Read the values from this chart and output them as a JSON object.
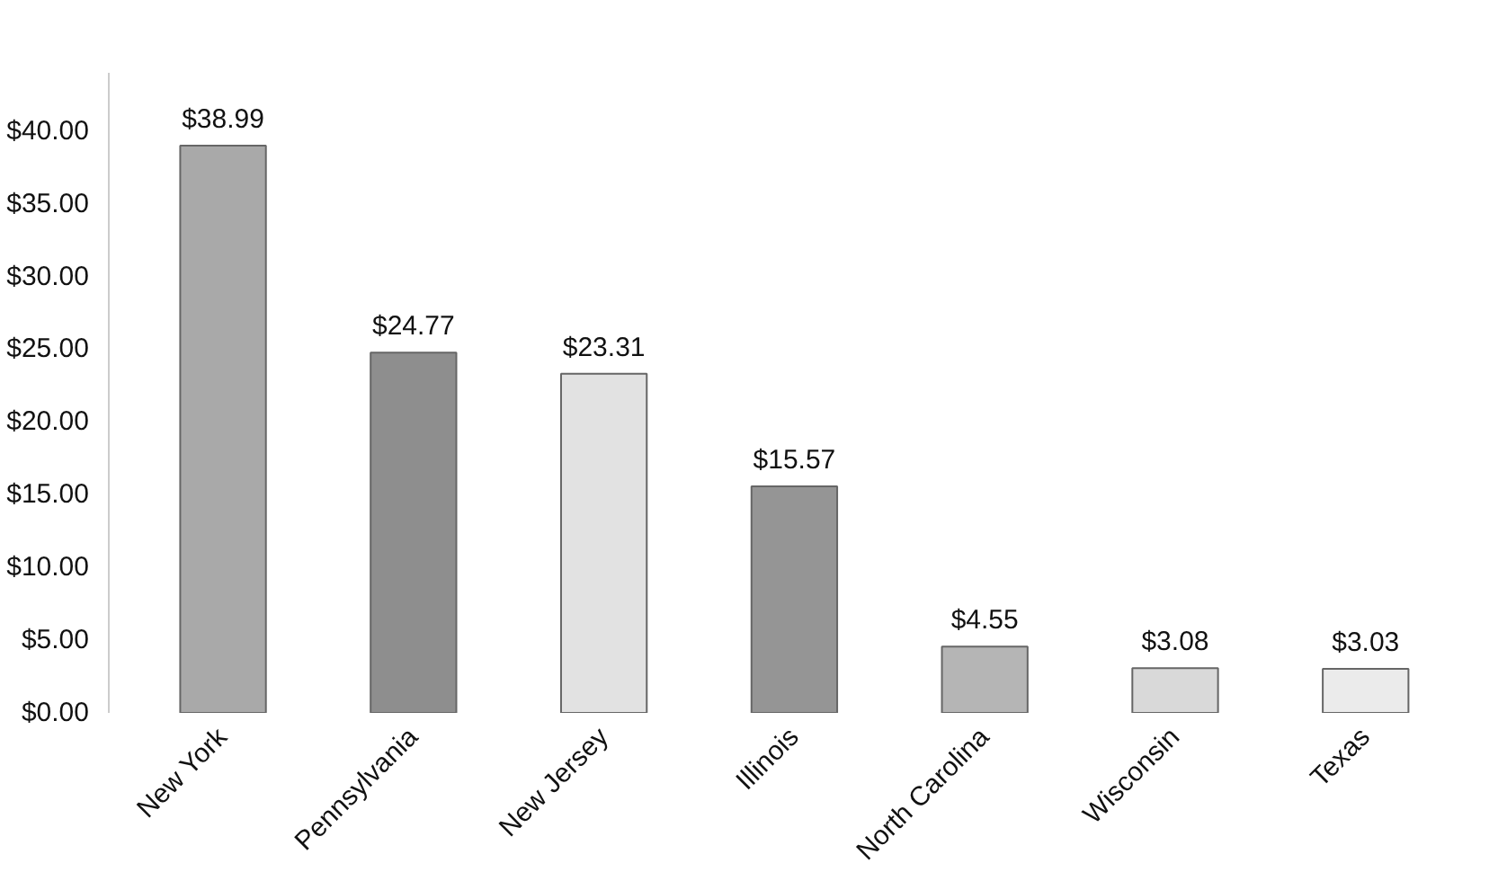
{
  "chart_data": {
    "type": "bar",
    "categories": [
      "New York",
      "Pennsylvania",
      "New Jersey",
      "Illinois",
      "North Carolina",
      "Wisconsin",
      "Texas"
    ],
    "values": [
      38.99,
      24.77,
      23.31,
      15.57,
      4.55,
      3.08,
      3.03
    ],
    "colors": [
      "#a9a9a9",
      "#8e8e8e",
      "#e2e2e2",
      "#959595",
      "#b5b5b5",
      "#d9d9d9",
      "#ebebeb"
    ],
    "value_labels": [
      "$38.99",
      "$24.77",
      "$23.31",
      "$15.57",
      "$4.55",
      "$3.08",
      "$3.03"
    ],
    "ylim": [
      0,
      44
    ],
    "yticks": [
      {
        "value": 0,
        "label": "$0.00"
      },
      {
        "value": 5,
        "label": "$5.00"
      },
      {
        "value": 10,
        "label": "$10.00"
      },
      {
        "value": 15,
        "label": "$15.00"
      },
      {
        "value": 20,
        "label": "$20.00"
      },
      {
        "value": 25,
        "label": "$25.00"
      },
      {
        "value": 30,
        "label": "$30.00"
      },
      {
        "value": 35,
        "label": "$35.00"
      },
      {
        "value": 40,
        "label": "$40.00"
      }
    ],
    "grid": false
  }
}
